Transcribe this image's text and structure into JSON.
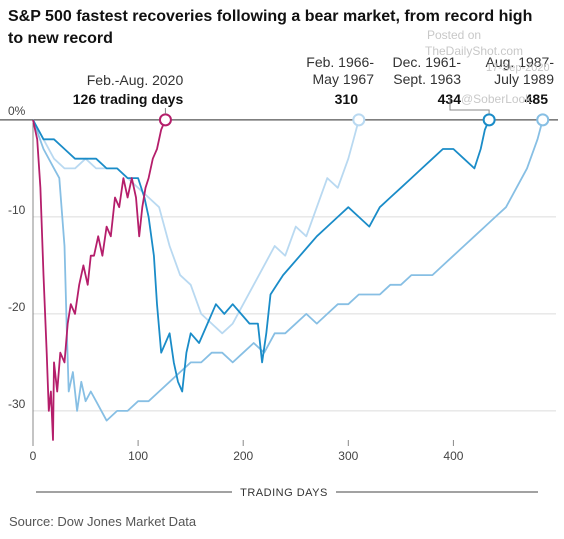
{
  "title": "S&P 500 fastest recoveries following a bear market, from record high to new record",
  "source": "Source: Dow Jones Market Data",
  "watermark": {
    "line1": "Posted on",
    "line2": "TheDailyShot.com",
    "line3": "17-Sep-2020",
    "line4": "@SoberLook"
  },
  "chart_data": {
    "type": "line",
    "title": "S&P 500 fastest recoveries following a bear market, from record high to new record",
    "xlabel": "TRADING DAYS",
    "ylabel": "",
    "xlim": [
      0,
      490
    ],
    "ylim": [
      -33,
      0.5
    ],
    "x_ticks": [
      0,
      100,
      200,
      300,
      400
    ],
    "y_ticks": [
      {
        "value": 0,
        "label": "0%"
      },
      {
        "value": -10,
        "label": "-10"
      },
      {
        "value": -20,
        "label": "-20"
      },
      {
        "value": -30,
        "label": "-30"
      }
    ],
    "grid": true,
    "series": [
      {
        "period": "Feb.-Aug. 2020",
        "days_label": "126 trading days",
        "color": "#b51e6b",
        "end_day": 126,
        "points": [
          [
            0,
            0
          ],
          [
            4,
            -2
          ],
          [
            7,
            -7
          ],
          [
            10,
            -16
          ],
          [
            13,
            -24
          ],
          [
            15,
            -30
          ],
          [
            17,
            -28
          ],
          [
            19,
            -33
          ],
          [
            20,
            -25
          ],
          [
            23,
            -28
          ],
          [
            26,
            -24
          ],
          [
            30,
            -25
          ],
          [
            33,
            -21
          ],
          [
            36,
            -19
          ],
          [
            40,
            -20
          ],
          [
            44,
            -17
          ],
          [
            48,
            -15
          ],
          [
            52,
            -17
          ],
          [
            55,
            -14
          ],
          [
            58,
            -14
          ],
          [
            62,
            -12
          ],
          [
            66,
            -14
          ],
          [
            70,
            -11
          ],
          [
            74,
            -12
          ],
          [
            78,
            -8
          ],
          [
            82,
            -9
          ],
          [
            86,
            -6
          ],
          [
            90,
            -8
          ],
          [
            94,
            -6
          ],
          [
            98,
            -8
          ],
          [
            101,
            -12
          ],
          [
            104,
            -9
          ],
          [
            107,
            -7
          ],
          [
            110,
            -6
          ],
          [
            114,
            -4
          ],
          [
            118,
            -3
          ],
          [
            122,
            -1
          ],
          [
            126,
            0
          ]
        ]
      },
      {
        "period": "Feb. 1966-May 1967",
        "days_label": "310",
        "color": "#b9d9f1",
        "end_day": 310,
        "points": [
          [
            0,
            0
          ],
          [
            10,
            -2
          ],
          [
            20,
            -4
          ],
          [
            30,
            -5
          ],
          [
            40,
            -5
          ],
          [
            50,
            -4
          ],
          [
            60,
            -5
          ],
          [
            70,
            -5
          ],
          [
            80,
            -5
          ],
          [
            90,
            -6
          ],
          [
            100,
            -7
          ],
          [
            110,
            -8
          ],
          [
            120,
            -9
          ],
          [
            130,
            -13
          ],
          [
            140,
            -16
          ],
          [
            150,
            -17
          ],
          [
            160,
            -20
          ],
          [
            170,
            -21
          ],
          [
            180,
            -22
          ],
          [
            190,
            -21
          ],
          [
            200,
            -19
          ],
          [
            210,
            -17
          ],
          [
            220,
            -15
          ],
          [
            230,
            -13
          ],
          [
            240,
            -14
          ],
          [
            250,
            -11
          ],
          [
            260,
            -12
          ],
          [
            270,
            -9
          ],
          [
            280,
            -6
          ],
          [
            290,
            -7
          ],
          [
            300,
            -4
          ],
          [
            305,
            -2
          ],
          [
            310,
            0
          ]
        ]
      },
      {
        "period": "Dec. 1961-Sept. 1963",
        "days_label": "434",
        "color": "#1a8cc8",
        "end_day": 434,
        "points": [
          [
            0,
            0
          ],
          [
            10,
            -2
          ],
          [
            20,
            -2
          ],
          [
            30,
            -3
          ],
          [
            40,
            -4
          ],
          [
            50,
            -4
          ],
          [
            60,
            -4
          ],
          [
            70,
            -5
          ],
          [
            80,
            -5
          ],
          [
            90,
            -6
          ],
          [
            100,
            -6
          ],
          [
            106,
            -8
          ],
          [
            110,
            -10
          ],
          [
            115,
            -14
          ],
          [
            118,
            -19
          ],
          [
            122,
            -24
          ],
          [
            126,
            -23
          ],
          [
            130,
            -22
          ],
          [
            134,
            -25
          ],
          [
            138,
            -27
          ],
          [
            142,
            -28
          ],
          [
            146,
            -24
          ],
          [
            150,
            -22
          ],
          [
            158,
            -23
          ],
          [
            166,
            -21
          ],
          [
            174,
            -19
          ],
          [
            182,
            -20
          ],
          [
            190,
            -19
          ],
          [
            198,
            -20
          ],
          [
            206,
            -21
          ],
          [
            214,
            -21
          ],
          [
            218,
            -25
          ],
          [
            222,
            -22
          ],
          [
            226,
            -18
          ],
          [
            232,
            -17
          ],
          [
            238,
            -16
          ],
          [
            246,
            -15
          ],
          [
            254,
            -14
          ],
          [
            262,
            -13
          ],
          [
            270,
            -12
          ],
          [
            280,
            -11
          ],
          [
            290,
            -10
          ],
          [
            300,
            -9
          ],
          [
            310,
            -10
          ],
          [
            320,
            -11
          ],
          [
            330,
            -9
          ],
          [
            340,
            -8
          ],
          [
            350,
            -7
          ],
          [
            360,
            -6
          ],
          [
            370,
            -5
          ],
          [
            380,
            -4
          ],
          [
            390,
            -3
          ],
          [
            400,
            -3
          ],
          [
            410,
            -4
          ],
          [
            420,
            -5
          ],
          [
            426,
            -3
          ],
          [
            430,
            -1
          ],
          [
            434,
            0
          ]
        ]
      },
      {
        "period": "Aug. 1987-July 1989",
        "days_label": "485",
        "color": "#87bfe4",
        "end_day": 485,
        "points": [
          [
            0,
            0
          ],
          [
            10,
            -3
          ],
          [
            20,
            -5
          ],
          [
            25,
            -6
          ],
          [
            30,
            -13
          ],
          [
            32,
            -21
          ],
          [
            34,
            -28
          ],
          [
            38,
            -26
          ],
          [
            42,
            -30
          ],
          [
            46,
            -27
          ],
          [
            50,
            -29
          ],
          [
            55,
            -28
          ],
          [
            60,
            -29
          ],
          [
            70,
            -31
          ],
          [
            80,
            -30
          ],
          [
            90,
            -30
          ],
          [
            100,
            -29
          ],
          [
            110,
            -29
          ],
          [
            120,
            -28
          ],
          [
            130,
            -27
          ],
          [
            140,
            -26
          ],
          [
            150,
            -25
          ],
          [
            160,
            -25
          ],
          [
            170,
            -24
          ],
          [
            180,
            -24
          ],
          [
            190,
            -25
          ],
          [
            200,
            -24
          ],
          [
            210,
            -23
          ],
          [
            220,
            -24
          ],
          [
            230,
            -22
          ],
          [
            240,
            -22
          ],
          [
            250,
            -21
          ],
          [
            260,
            -20
          ],
          [
            270,
            -21
          ],
          [
            280,
            -20
          ],
          [
            290,
            -19
          ],
          [
            300,
            -19
          ],
          [
            310,
            -18
          ],
          [
            320,
            -18
          ],
          [
            330,
            -18
          ],
          [
            340,
            -17
          ],
          [
            350,
            -17
          ],
          [
            360,
            -16
          ],
          [
            370,
            -16
          ],
          [
            380,
            -16
          ],
          [
            390,
            -15
          ],
          [
            400,
            -14
          ],
          [
            410,
            -13
          ],
          [
            420,
            -12
          ],
          [
            430,
            -11
          ],
          [
            440,
            -10
          ],
          [
            450,
            -9
          ],
          [
            460,
            -7
          ],
          [
            470,
            -5
          ],
          [
            480,
            -2
          ],
          [
            485,
            0
          ]
        ]
      }
    ]
  }
}
